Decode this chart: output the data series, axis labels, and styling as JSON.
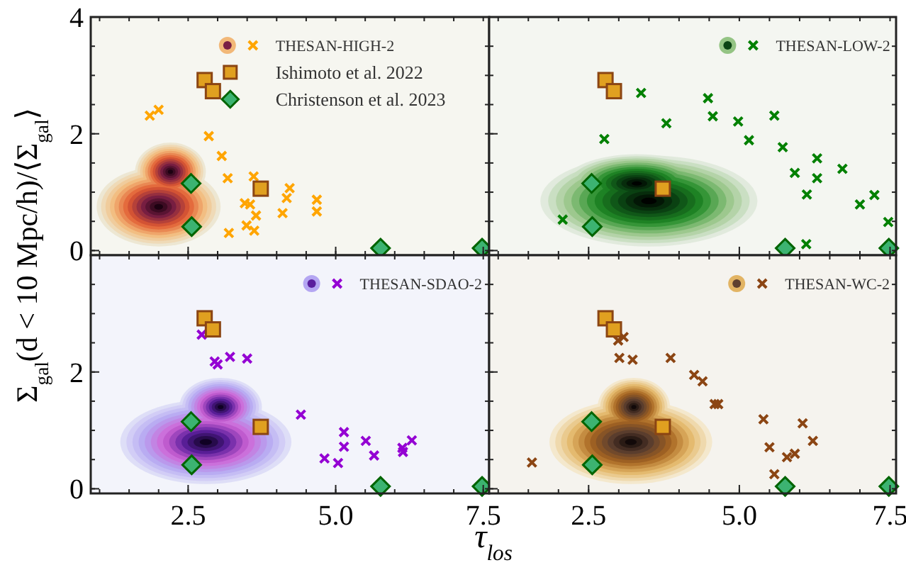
{
  "chart_data": [
    {
      "type": "scatter",
      "ylabel": "Σ$_{gal}$(d < 10 Mpc/h)/⟨Σ$_{gal}$⟩",
      "xlim": [
        0.85,
        7.6
      ],
      "ylim": [
        -0.08,
        4
      ],
      "xticks": [
        {
          "value": 2.5,
          "label": null
        },
        {
          "value": 5,
          "label": null
        },
        {
          "value": 7.5,
          "label": null
        }
      ],
      "yticks": [
        0,
        2,
        4
      ],
      "tick_labels": "y",
      "legend": "top right",
      "series": [
        {
          "name": "THESAN-HIGH-2",
          "color": "#ffa500",
          "marker": "cross",
          "x": [
            1.85,
            2.0,
            2.85,
            3.07,
            3.17,
            3.61,
            4.22,
            4.17,
            4.68,
            4.68,
            3.46,
            3.55,
            3.65,
            4.1,
            3.49,
            3.62,
            3.19
          ],
          "values": [
            2.31,
            2.41,
            1.96,
            1.62,
            1.24,
            1.27,
            1.07,
            0.9,
            0.87,
            0.67,
            0.81,
            0.79,
            0.6,
            0.64,
            0.43,
            0.34,
            0.3
          ]
        },
        {
          "name": "Ishimoto et al. 2022",
          "color": "#e0a020",
          "marker": "square",
          "x": [
            2.78,
            2.92,
            3.73
          ],
          "values": [
            2.92,
            2.73,
            1.06
          ]
        },
        {
          "name": "Christenson et al. 2023",
          "color": "#3cb371",
          "marker": "diamond",
          "x": [
            2.55,
            2.56,
            5.76,
            7.48
          ],
          "values": [
            1.15,
            0.41,
            0.04,
            0.04
          ]
        }
      ]
    },
    {
      "type": "scatter",
      "xlim": [
        0.85,
        7.6
      ],
      "ylim": [
        -0.08,
        4
      ],
      "xticks": [
        {
          "value": 2.5,
          "label": null
        },
        {
          "value": 5,
          "label": null
        },
        {
          "value": 7.5,
          "label": null
        }
      ],
      "yticks": [
        0,
        2,
        4
      ],
      "tick_labels": false,
      "legend": "top right",
      "series": [
        {
          "name": "THESAN-LOW-2",
          "color": "#008000",
          "marker": "cross",
          "x": [
            3.37,
            4.48,
            4.56,
            4.98,
            5.58,
            3.79,
            2.76,
            5.16,
            5.72,
            6.29,
            5.92,
            6.29,
            6.71,
            6.12,
            7.24,
            7.0,
            7.47,
            2.07,
            6.11
          ],
          "values": [
            2.7,
            2.61,
            2.3,
            2.21,
            2.31,
            2.18,
            1.91,
            1.89,
            1.77,
            1.58,
            1.33,
            1.24,
            1.4,
            0.96,
            0.95,
            0.79,
            0.49,
            0.53,
            0.11
          ]
        },
        {
          "color": "#e0a020",
          "marker": "square",
          "x": [
            2.78,
            2.92,
            3.73
          ],
          "values": [
            2.92,
            2.73,
            1.06
          ]
        },
        {
          "color": "#3cb371",
          "marker": "diamond",
          "x": [
            2.55,
            2.56,
            5.76,
            7.48
          ],
          "values": [
            1.15,
            0.41,
            0.04,
            0.04
          ]
        }
      ]
    },
    {
      "type": "scatter",
      "xlabel": "τ$_{los}$",
      "xlim": [
        0.85,
        7.6
      ],
      "ylim": [
        -0.08,
        4
      ],
      "xticks": [
        {
          "value": 2.5,
          "label": "2.5"
        },
        {
          "value": 5,
          "label": "5.0"
        },
        {
          "value": 7.5,
          "label": "7.5"
        }
      ],
      "yticks": [
        0,
        2,
        {
          "value": 4,
          "label": null
        }
      ],
      "legend": "top right",
      "series": [
        {
          "name": "THESAN-SDAO-2",
          "color": "#9400d3",
          "marker": "cross",
          "x": [
            2.73,
            2.95,
            3.0,
            3.21,
            3.5,
            4.41,
            5.14,
            5.14,
            5.51,
            5.65,
            6.13,
            6.14,
            6.29,
            4.81,
            5.04
          ],
          "values": [
            2.64,
            2.18,
            2.13,
            2.26,
            2.23,
            1.27,
            0.97,
            0.72,
            0.82,
            0.57,
            0.7,
            0.63,
            0.83,
            0.52,
            0.44
          ]
        },
        {
          "color": "#e0a020",
          "marker": "square",
          "x": [
            2.78,
            2.92,
            3.73
          ],
          "values": [
            2.92,
            2.73,
            1.06
          ]
        },
        {
          "color": "#3cb371",
          "marker": "diamond",
          "x": [
            2.55,
            2.56,
            5.76,
            7.48
          ],
          "values": [
            1.15,
            0.41,
            0.04,
            0.04
          ]
        }
      ]
    },
    {
      "type": "scatter",
      "xlim": [
        0.85,
        7.6
      ],
      "ylim": [
        -0.08,
        4
      ],
      "xticks": [
        {
          "value": 2.5,
          "label": "2.5"
        },
        {
          "value": 5,
          "label": "5.0"
        },
        {
          "value": 7.5,
          "label": "7.5"
        }
      ],
      "yticks": [
        0,
        2,
        {
          "value": 4,
          "label": null
        }
      ],
      "tick_labels": "x",
      "legend": "top right",
      "series": [
        {
          "name": "THESAN-WC-2",
          "color": "#8b4513",
          "marker": "cross",
          "x": [
            1.56,
            2.99,
            3.08,
            3.01,
            3.23,
            3.86,
            4.25,
            4.39,
            4.59,
            4.65,
            5.4,
            6.05,
            6.22,
            5.5,
            5.79,
            5.92,
            5.58
          ],
          "values": [
            0.45,
            2.54,
            2.6,
            2.24,
            2.21,
            2.24,
            1.95,
            1.84,
            1.45,
            1.45,
            1.19,
            1.12,
            0.82,
            0.71,
            0.54,
            0.6,
            0.25
          ]
        },
        {
          "color": "#e0a020",
          "marker": "square",
          "x": [
            2.78,
            2.92,
            3.73
          ],
          "values": [
            2.92,
            2.73,
            1.06
          ]
        },
        {
          "color": "#3cb371",
          "marker": "diamond",
          "x": [
            2.55,
            2.56,
            5.76,
            7.48
          ],
          "values": [
            1.15,
            0.41,
            0.04,
            0.04
          ]
        }
      ]
    }
  ]
}
